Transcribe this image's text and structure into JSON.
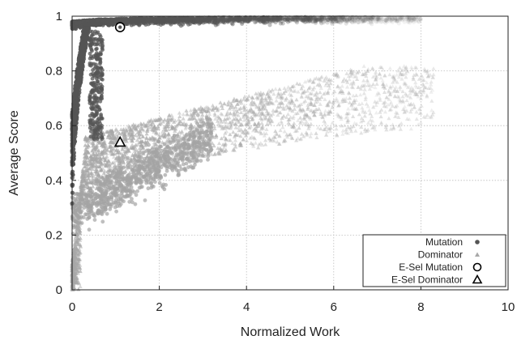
{
  "chart_data": {
    "type": "scatter",
    "title": "",
    "xlabel": "Normalized Work",
    "ylabel": "Average Score",
    "xlim": [
      0,
      10
    ],
    "ylim": [
      0,
      1
    ],
    "xticks": [
      0,
      2,
      4,
      6,
      8,
      10
    ],
    "yticks": [
      0,
      0.2,
      0.4,
      0.6,
      0.8,
      1
    ],
    "xtick_labels": [
      "0",
      "2",
      "4",
      "6",
      "8",
      "10"
    ],
    "ytick_labels": [
      "0",
      "0.2",
      "0.4",
      "0.6",
      "0.8",
      "1"
    ],
    "grid": true,
    "legend_position": "bottom-right",
    "series": [
      {
        "name": "Mutation",
        "marker": "filled-circle",
        "color": "#555555",
        "description_points": [
          [
            0.02,
            0.25
          ],
          [
            0.05,
            0.45
          ],
          [
            0.1,
            0.65
          ],
          [
            0.15,
            0.8
          ],
          [
            0.2,
            0.88
          ],
          [
            0.3,
            0.93
          ],
          [
            0.4,
            0.95
          ],
          [
            0.6,
            0.96
          ],
          [
            1.0,
            0.97
          ],
          [
            1.5,
            0.975
          ],
          [
            2.0,
            0.98
          ],
          [
            3.0,
            0.985
          ],
          [
            4.0,
            0.99
          ],
          [
            5.0,
            0.992
          ],
          [
            6.0,
            0.995
          ],
          [
            7.0,
            0.997
          ],
          [
            8.0,
            0.998
          ],
          [
            0.1,
            0.3
          ],
          [
            0.2,
            0.5
          ],
          [
            0.3,
            0.7
          ]
        ]
      },
      {
        "name": "Dominator",
        "marker": "filled-triangle",
        "color": "#a8a8a8",
        "description_points": [
          [
            0.0,
            0.05
          ],
          [
            0.05,
            0.12
          ],
          [
            0.1,
            0.2
          ],
          [
            0.2,
            0.3
          ],
          [
            0.4,
            0.38
          ],
          [
            0.6,
            0.42
          ],
          [
            1.0,
            0.5
          ],
          [
            1.5,
            0.55
          ],
          [
            2.0,
            0.58
          ],
          [
            3.0,
            0.62
          ],
          [
            4.0,
            0.66
          ],
          [
            5.0,
            0.7
          ],
          [
            6.0,
            0.74
          ],
          [
            7.0,
            0.78
          ],
          [
            8.0,
            0.8
          ]
        ]
      },
      {
        "name": "E-Sel Mutation",
        "marker": "open-circle",
        "color": "#000000",
        "points": [
          [
            1.1,
            0.96
          ]
        ]
      },
      {
        "name": "E-Sel Dominator",
        "marker": "open-triangle",
        "color": "#000000",
        "points": [
          [
            1.1,
            0.54
          ]
        ]
      }
    ]
  }
}
